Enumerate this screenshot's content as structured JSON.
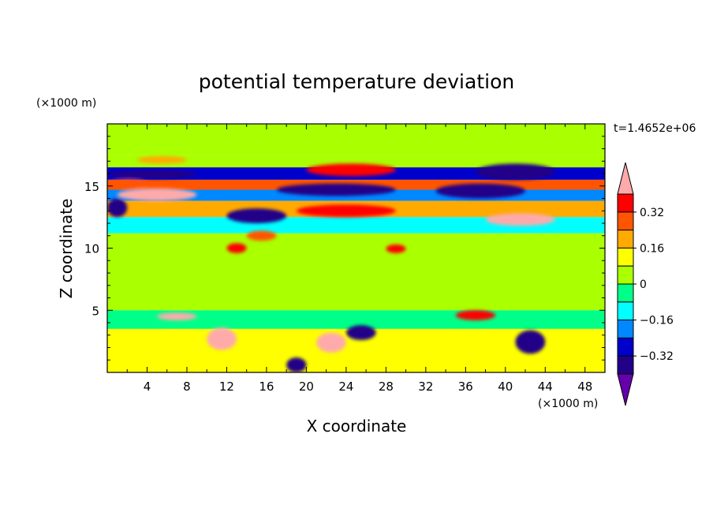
{
  "chart_data": {
    "type": "heatmap",
    "title": "potential temperature deviation",
    "xlabel": "X coordinate",
    "ylabel": "Z coordinate",
    "x_units": "(×1000 m)",
    "y_units": "(×1000 m)",
    "time_label": "t=1.4652e+06",
    "xlim": [
      0,
      50
    ],
    "ylim": [
      0,
      20
    ],
    "x_ticks": [
      4,
      8,
      12,
      16,
      20,
      24,
      28,
      32,
      36,
      40,
      44,
      48
    ],
    "y_ticks": [
      5,
      10,
      15
    ],
    "x_tick_labels": [
      "4",
      "8",
      "12",
      "16",
      "20",
      "24",
      "28",
      "32",
      "36",
      "40",
      "44",
      "48"
    ],
    "y_tick_labels": [
      "5",
      "10",
      "15"
    ],
    "colorbar": {
      "levels": [
        -0.4,
        -0.32,
        -0.24,
        -0.16,
        -0.08,
        0,
        0.08,
        0.16,
        0.24,
        0.32,
        0.4
      ],
      "tick_values": [
        0.32,
        0.16,
        0,
        -0.16,
        -0.32
      ],
      "tick_labels": [
        "0.32",
        "0.16",
        "0",
        "−0.16",
        "−0.32"
      ],
      "colors": [
        "#ffaaaa",
        "#ff0000",
        "#ff5500",
        "#ffaa00",
        "#ffff00",
        "#aaff00",
        "#00ff88",
        "#00ffff",
        "#0088ff",
        "#0000cc",
        "#220088",
        "#6600aa"
      ],
      "extend": "both"
    },
    "bands": [
      {
        "y": [
          17.5,
          20
        ],
        "value": 0.03
      },
      {
        "y": [
          16.5,
          17.5
        ],
        "value": 0.0
      },
      {
        "y": [
          15.5,
          16.5
        ],
        "value": -0.3
      },
      {
        "y": [
          14.7,
          15.5
        ],
        "value": 0.3
      },
      {
        "y": [
          13.8,
          14.7
        ],
        "value": -0.2
      },
      {
        "y": [
          12.5,
          13.8
        ],
        "value": 0.2
      },
      {
        "y": [
          11.2,
          12.5
        ],
        "value": -0.1
      },
      {
        "y": [
          5,
          11.2
        ],
        "value": 0.02
      },
      {
        "y": [
          3.5,
          5
        ],
        "value": -0.05
      },
      {
        "y": [
          0,
          3.5
        ],
        "value": 0.1
      }
    ],
    "features": [
      {
        "x": [
          0,
          9
        ],
        "y": [
          15.6,
          16.3
        ],
        "value": -0.38
      },
      {
        "x": [
          3,
          8
        ],
        "y": [
          16.8,
          17.4
        ],
        "value": 0.2
      },
      {
        "x": [
          20,
          29
        ],
        "y": [
          15.8,
          16.8
        ],
        "value": 0.38
      },
      {
        "x": [
          37,
          45
        ],
        "y": [
          15.5,
          16.8
        ],
        "value": -0.36
      },
      {
        "x": [
          1,
          9
        ],
        "y": [
          13.8,
          14.8
        ],
        "value": 0.4
      },
      {
        "x": [
          0,
          4
        ],
        "y": [
          14.8,
          15.5
        ],
        "value": 0.3
      },
      {
        "x": [
          17,
          29
        ],
        "y": [
          14.2,
          15.2
        ],
        "value": -0.4
      },
      {
        "x": [
          33,
          42
        ],
        "y": [
          14.0,
          15.2
        ],
        "value": -0.38
      },
      {
        "x": [
          0,
          2
        ],
        "y": [
          12.5,
          14.0
        ],
        "value": -0.36
      },
      {
        "x": [
          19,
          29
        ],
        "y": [
          12.5,
          13.5
        ],
        "value": 0.32
      },
      {
        "x": [
          38,
          45
        ],
        "y": [
          11.8,
          12.8
        ],
        "value": 0.4
      },
      {
        "x": [
          12,
          18
        ],
        "y": [
          12.0,
          13.2
        ],
        "value": -0.38
      },
      {
        "x": [
          14,
          17
        ],
        "y": [
          10.6,
          11.4
        ],
        "value": 0.3
      },
      {
        "x": [
          12,
          14
        ],
        "y": [
          9.6,
          10.4
        ],
        "value": 0.38
      },
      {
        "x": [
          28,
          30
        ],
        "y": [
          9.6,
          10.3
        ],
        "value": 0.32
      },
      {
        "x": [
          5,
          9
        ],
        "y": [
          4.2,
          4.8
        ],
        "value": 0.4
      },
      {
        "x": [
          10,
          13
        ],
        "y": [
          1.8,
          3.6
        ],
        "value": 0.4
      },
      {
        "x": [
          21,
          24
        ],
        "y": [
          1.6,
          3.2
        ],
        "value": 0.4
      },
      {
        "x": [
          35,
          39
        ],
        "y": [
          4.2,
          5.0
        ],
        "value": 0.38
      },
      {
        "x": [
          24,
          27
        ],
        "y": [
          2.6,
          3.8
        ],
        "value": -0.38
      },
      {
        "x": [
          41,
          44
        ],
        "y": [
          1.5,
          3.4
        ],
        "value": -0.36
      },
      {
        "x": [
          18,
          20
        ],
        "y": [
          0,
          1.2
        ],
        "value": -0.38
      }
    ]
  }
}
